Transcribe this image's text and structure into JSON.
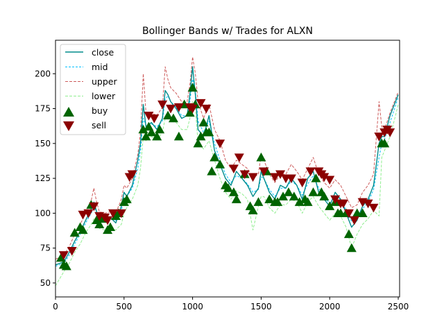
{
  "chart_data": {
    "type": "line",
    "title": "Bollinger Bands w/ Trades for ALXN",
    "xlabel": "",
    "ylabel": "",
    "xlim": [
      0,
      2510
    ],
    "ylim": [
      40,
      224
    ],
    "xticks": [
      0,
      500,
      1000,
      1500,
      2000,
      2500
    ],
    "yticks": [
      50,
      75,
      100,
      125,
      150,
      175,
      200
    ],
    "grid": false,
    "legend_position": "top-left",
    "colors": {
      "close": "#008b8b",
      "mid": "#00bfff",
      "upper": "#cd5c5c",
      "lower": "#90ee90",
      "buy": "#006400",
      "sell": "#8b0000"
    },
    "series": [
      {
        "name": "close",
        "style": "solid",
        "x": [
          0,
          60,
          100,
          140,
          180,
          220,
          260,
          280,
          300,
          320,
          360,
          400,
          440,
          480,
          500,
          520,
          560,
          600,
          620,
          640,
          660,
          700,
          740,
          780,
          800,
          820,
          840,
          880,
          920,
          960,
          980,
          1000,
          1020,
          1040,
          1080,
          1120,
          1160,
          1200,
          1240,
          1280,
          1320,
          1360,
          1400,
          1440,
          1480,
          1500,
          1520,
          1560,
          1600,
          1640,
          1680,
          1720,
          1760,
          1800,
          1840,
          1880,
          1920,
          1960,
          2000,
          2040,
          2080,
          2120,
          2160,
          2200,
          2240,
          2280,
          2320,
          2360,
          2380,
          2400,
          2440,
          2480,
          2500
        ],
        "values": [
          63,
          65,
          72,
          80,
          87,
          95,
          103,
          108,
          101,
          94,
          96,
          97,
          93,
          105,
          115,
          112,
          120,
          138,
          150,
          178,
          162,
          165,
          160,
          168,
          188,
          185,
          180,
          175,
          168,
          170,
          185,
          205,
          185,
          160,
          155,
          170,
          145,
          135,
          125,
          120,
          130,
          125,
          120,
          112,
          118,
          130,
          125,
          115,
          110,
          120,
          118,
          125,
          120,
          110,
          125,
          130,
          115,
          110,
          105,
          115,
          110,
          100,
          90,
          95,
          105,
          110,
          120,
          150,
          155,
          155,
          170,
          180,
          185
        ]
      },
      {
        "name": "mid",
        "style": "dashed",
        "x": [
          0,
          60,
          100,
          140,
          180,
          220,
          260,
          280,
          300,
          320,
          360,
          400,
          440,
          480,
          500,
          520,
          560,
          600,
          620,
          640,
          660,
          700,
          740,
          780,
          800,
          820,
          840,
          880,
          920,
          960,
          980,
          1000,
          1020,
          1040,
          1080,
          1120,
          1160,
          1200,
          1240,
          1280,
          1320,
          1360,
          1400,
          1440,
          1480,
          1500,
          1520,
          1560,
          1600,
          1640,
          1680,
          1720,
          1760,
          1800,
          1840,
          1880,
          1920,
          1960,
          2000,
          2040,
          2080,
          2120,
          2160,
          2200,
          2240,
          2280,
          2320,
          2360,
          2380,
          2400,
          2440,
          2480,
          2500
        ],
        "values": [
          62,
          64,
          70,
          78,
          85,
          93,
          100,
          104,
          101,
          96,
          95,
          96,
          95,
          102,
          110,
          112,
          118,
          132,
          145,
          168,
          163,
          164,
          162,
          166,
          182,
          184,
          180,
          176,
          170,
          170,
          180,
          196,
          188,
          166,
          158,
          166,
          150,
          138,
          128,
          122,
          127,
          125,
          121,
          115,
          117,
          126,
          125,
          117,
          112,
          118,
          118,
          123,
          120,
          113,
          121,
          127,
          118,
          112,
          107,
          112,
          110,
          102,
          94,
          96,
          103,
          108,
          117,
          140,
          150,
          153,
          165,
          177,
          183
        ]
      },
      {
        "name": "upper",
        "style": "dashed",
        "x": [
          0,
          60,
          100,
          140,
          180,
          220,
          260,
          280,
          300,
          320,
          360,
          400,
          440,
          480,
          500,
          520,
          560,
          600,
          620,
          640,
          660,
          700,
          740,
          780,
          800,
          820,
          840,
          880,
          920,
          960,
          980,
          1000,
          1020,
          1040,
          1080,
          1120,
          1160,
          1200,
          1240,
          1280,
          1320,
          1360,
          1400,
          1440,
          1480,
          1500,
          1520,
          1560,
          1600,
          1640,
          1680,
          1720,
          1760,
          1800,
          1840,
          1880,
          1920,
          1960,
          2000,
          2040,
          2080,
          2120,
          2160,
          2200,
          2240,
          2280,
          2320,
          2360,
          2380,
          2400,
          2440,
          2480,
          2500
        ],
        "values": [
          67,
          70,
          76,
          85,
          92,
          100,
          109,
          118,
          108,
          101,
          100,
          101,
          100,
          110,
          120,
          118,
          125,
          142,
          158,
          200,
          172,
          172,
          170,
          176,
          205,
          196,
          190,
          186,
          180,
          180,
          192,
          212,
          200,
          180,
          168,
          178,
          160,
          152,
          138,
          132,
          138,
          135,
          132,
          125,
          128,
          142,
          138,
          128,
          122,
          128,
          128,
          135,
          130,
          124,
          132,
          140,
          128,
          122,
          118,
          124,
          120,
          112,
          104,
          106,
          115,
          120,
          128,
          180,
          162,
          160,
          172,
          182,
          187
        ]
      },
      {
        "name": "lower",
        "style": "dashed",
        "x": [
          0,
          60,
          100,
          140,
          180,
          220,
          260,
          280,
          300,
          320,
          360,
          400,
          440,
          480,
          500,
          520,
          560,
          600,
          620,
          640,
          660,
          700,
          740,
          780,
          800,
          820,
          840,
          880,
          920,
          960,
          980,
          1000,
          1020,
          1040,
          1080,
          1120,
          1160,
          1200,
          1240,
          1280,
          1320,
          1360,
          1400,
          1440,
          1480,
          1500,
          1520,
          1560,
          1600,
          1640,
          1680,
          1720,
          1760,
          1800,
          1840,
          1880,
          1920,
          1960,
          2000,
          2040,
          2080,
          2120,
          2160,
          2200,
          2240,
          2280,
          2320,
          2360,
          2380,
          2400,
          2440,
          2480,
          2500
        ],
        "values": [
          48,
          58,
          64,
          72,
          78,
          86,
          92,
          96,
          94,
          89,
          88,
          89,
          88,
          92,
          100,
          104,
          110,
          120,
          132,
          155,
          152,
          155,
          152,
          158,
          168,
          170,
          168,
          165,
          160,
          160,
          168,
          180,
          175,
          150,
          146,
          152,
          138,
          125,
          115,
          110,
          116,
          114,
          110,
          88,
          105,
          112,
          112,
          104,
          100,
          106,
          106,
          110,
          108,
          100,
          108,
          112,
          105,
          100,
          95,
          100,
          98,
          90,
          75,
          85,
          92,
          96,
          102,
          98,
          140,
          145,
          155,
          170,
          178
        ]
      }
    ],
    "trades": {
      "buy": {
        "name": "buy",
        "x": [
          40,
          60,
          80,
          140,
          180,
          200,
          260,
          300,
          320,
          340,
          380,
          400,
          440,
          460,
          500,
          520,
          640,
          660,
          680,
          700,
          740,
          760,
          820,
          860,
          900,
          940,
          980,
          1000,
          1020,
          1040,
          1060,
          1080,
          1100,
          1120,
          1140,
          1160,
          1200,
          1240,
          1260,
          1300,
          1320,
          1380,
          1420,
          1440,
          1480,
          1500,
          1540,
          1560,
          1600,
          1620,
          1660,
          1700,
          1740,
          1780,
          1820,
          1840,
          1880,
          1900,
          1940,
          1960,
          2000,
          2040,
          2060,
          2080,
          2120,
          2140,
          2160,
          2200,
          2240,
          2380,
          2400
        ],
        "values": [
          68,
          63,
          62,
          86,
          90,
          88,
          106,
          95,
          92,
          96,
          88,
          90,
          98,
          100,
          108,
          110,
          160,
          155,
          162,
          158,
          155,
          160,
          170,
          168,
          155,
          178,
          172,
          190,
          178,
          150,
          155,
          165,
          158,
          158,
          130,
          140,
          135,
          120,
          118,
          115,
          110,
          128,
          105,
          102,
          108,
          140,
          130,
          110,
          108,
          108,
          112,
          115,
          112,
          108,
          110,
          108,
          115,
          125,
          115,
          112,
          105,
          108,
          100,
          100,
          100,
          85,
          75,
          100,
          100,
          150,
          150
        ]
      },
      "sell": {
        "name": "sell",
        "x": [
          60,
          120,
          200,
          240,
          280,
          320,
          360,
          380,
          420,
          480,
          540,
          560,
          680,
          720,
          780,
          840,
          900,
          980,
          1000,
          1060,
          1100,
          1200,
          1300,
          1340,
          1380,
          1440,
          1520,
          1600,
          1640,
          1680,
          1720,
          1800,
          1860,
          1920,
          1940,
          1960,
          2000,
          2040,
          2080,
          2100,
          2140,
          2180,
          2240,
          2280,
          2320,
          2360,
          2400,
          2420,
          2440
        ],
        "values": [
          70,
          73,
          99,
          100,
          105,
          98,
          97,
          95,
          100,
          100,
          126,
          128,
          170,
          168,
          178,
          175,
          176,
          176,
          175,
          179,
          175,
          150,
          132,
          140,
          128,
          126,
          130,
          126,
          128,
          125,
          125,
          122,
          130,
          130,
          128,
          126,
          124,
          110,
          107,
          107,
          100,
          95,
          108,
          107,
          104,
          155,
          158,
          160,
          158
        ]
      }
    }
  }
}
